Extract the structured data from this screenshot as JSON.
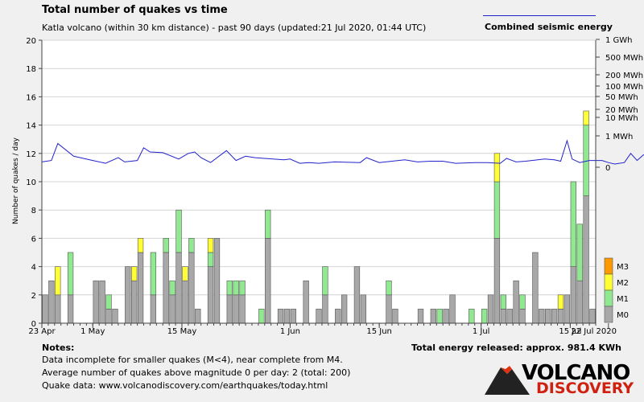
{
  "header": {
    "title": "Total number of quakes vs time",
    "subtitle": "Katla volcano (within 30 km distance) - past 90 days (updated:21 Jul 2020, 01:44 UTC)",
    "legend_energy": "Combined seismic energy"
  },
  "notes": {
    "title": "Notes:",
    "line1": "Data incomplete for smaller quakes (M<4), near complete from M4.",
    "line2": "Average number of quakes above magnitude 0 per day: 2 (total: 200)",
    "line3": "Quake data: www.volcanodiscovery.com/earthquakes/today.html"
  },
  "total_energy": "Total energy released: approx. 981.4 KWh",
  "logo": {
    "top": "VOLCANO",
    "bottom": "DISCOVERY"
  },
  "colors": {
    "M0": "#a8a8a8",
    "M1": "#90e890",
    "M2": "#ffff33",
    "M3": "#ff9900",
    "energy": "#2222cc"
  },
  "chart_data": {
    "type": "bar",
    "stacked": true,
    "ylabel": "Number of quakes / day",
    "ylim": [
      0,
      20
    ],
    "y_ticks": [
      0,
      2,
      4,
      6,
      8,
      10,
      12,
      14,
      16,
      18,
      20
    ],
    "x_tick_labels": [
      "23 Apr",
      "1 May",
      "15 May",
      "1 Jun",
      "15 Jun",
      "1 Jul",
      "15 Jul",
      "22 Jul 2020"
    ],
    "right_axis_labels": [
      "1 GWh",
      "500 MWh",
      "200 MWh",
      "100 MWh",
      "50 MWh",
      "20 MWh",
      "10 MWh",
      "1 MWh",
      "0"
    ],
    "magnitude_legend": [
      "M3",
      "M2",
      "M1",
      "M0"
    ],
    "grid": true,
    "days": [
      {
        "M0": 2,
        "M1": 0,
        "M2": 0
      },
      {
        "M0": 3,
        "M1": 0,
        "M2": 0
      },
      {
        "M0": 2,
        "M1": 0,
        "M2": 2
      },
      {
        "M0": 0,
        "M1": 0,
        "M2": 0
      },
      {
        "M0": 2,
        "M1": 3,
        "M2": 0
      },
      {
        "M0": 0,
        "M1": 0,
        "M2": 0
      },
      {
        "M0": 0,
        "M1": 0,
        "M2": 0
      },
      {
        "M0": 0,
        "M1": 0,
        "M2": 0
      },
      {
        "M0": 3,
        "M1": 0,
        "M2": 0
      },
      {
        "M0": 3,
        "M1": 0,
        "M2": 0
      },
      {
        "M0": 1,
        "M1": 1,
        "M2": 0
      },
      {
        "M0": 1,
        "M1": 0,
        "M2": 0
      },
      {
        "M0": 0,
        "M1": 0,
        "M2": 0
      },
      {
        "M0": 4,
        "M1": 0,
        "M2": 0
      },
      {
        "M0": 3,
        "M1": 0,
        "M2": 1
      },
      {
        "M0": 5,
        "M1": 0,
        "M2": 1
      },
      {
        "M0": 0,
        "M1": 0,
        "M2": 0
      },
      {
        "M0": 2,
        "M1": 3,
        "M2": 0
      },
      {
        "M0": 0,
        "M1": 0,
        "M2": 0
      },
      {
        "M0": 5,
        "M1": 1,
        "M2": 0
      },
      {
        "M0": 2,
        "M1": 1,
        "M2": 0
      },
      {
        "M0": 5,
        "M1": 3,
        "M2": 0
      },
      {
        "M0": 3,
        "M1": 0,
        "M2": 1
      },
      {
        "M0": 5,
        "M1": 1,
        "M2": 0
      },
      {
        "M0": 1,
        "M1": 0,
        "M2": 0
      },
      {
        "M0": 0,
        "M1": 0,
        "M2": 0
      },
      {
        "M0": 4,
        "M1": 1,
        "M2": 1
      },
      {
        "M0": 6,
        "M1": 0,
        "M2": 0
      },
      {
        "M0": 0,
        "M1": 0,
        "M2": 0
      },
      {
        "M0": 2,
        "M1": 1,
        "M2": 0
      },
      {
        "M0": 2,
        "M1": 1,
        "M2": 0
      },
      {
        "M0": 2,
        "M1": 1,
        "M2": 0
      },
      {
        "M0": 0,
        "M1": 0,
        "M2": 0
      },
      {
        "M0": 0,
        "M1": 0,
        "M2": 0
      },
      {
        "M0": 0,
        "M1": 1,
        "M2": 0
      },
      {
        "M0": 6,
        "M1": 2,
        "M2": 0
      },
      {
        "M0": 0,
        "M1": 0,
        "M2": 0
      },
      {
        "M0": 1,
        "M1": 0,
        "M2": 0
      },
      {
        "M0": 1,
        "M1": 0,
        "M2": 0
      },
      {
        "M0": 1,
        "M1": 0,
        "M2": 0
      },
      {
        "M0": 0,
        "M1": 0,
        "M2": 0
      },
      {
        "M0": 3,
        "M1": 0,
        "M2": 0
      },
      {
        "M0": 0,
        "M1": 0,
        "M2": 0
      },
      {
        "M0": 1,
        "M1": 0,
        "M2": 0
      },
      {
        "M0": 2,
        "M1": 2,
        "M2": 0
      },
      {
        "M0": 0,
        "M1": 0,
        "M2": 0
      },
      {
        "M0": 1,
        "M1": 0,
        "M2": 0
      },
      {
        "M0": 2,
        "M1": 0,
        "M2": 0
      },
      {
        "M0": 0,
        "M1": 0,
        "M2": 0
      },
      {
        "M0": 4,
        "M1": 0,
        "M2": 0
      },
      {
        "M0": 2,
        "M1": 0,
        "M2": 0
      },
      {
        "M0": 0,
        "M1": 0,
        "M2": 0
      },
      {
        "M0": 0,
        "M1": 0,
        "M2": 0
      },
      {
        "M0": 0,
        "M1": 0,
        "M2": 0
      },
      {
        "M0": 2,
        "M1": 1,
        "M2": 0
      },
      {
        "M0": 1,
        "M1": 0,
        "M2": 0
      },
      {
        "M0": 0,
        "M1": 0,
        "M2": 0
      },
      {
        "M0": 0,
        "M1": 0,
        "M2": 0
      },
      {
        "M0": 0,
        "M1": 0,
        "M2": 0
      },
      {
        "M0": 1,
        "M1": 0,
        "M2": 0
      },
      {
        "M0": 0,
        "M1": 0,
        "M2": 0
      },
      {
        "M0": 1,
        "M1": 0,
        "M2": 0
      },
      {
        "M0": 0,
        "M1": 1,
        "M2": 0
      },
      {
        "M0": 1,
        "M1": 0,
        "M2": 0
      },
      {
        "M0": 2,
        "M1": 0,
        "M2": 0
      },
      {
        "M0": 0,
        "M1": 0,
        "M2": 0
      },
      {
        "M0": 0,
        "M1": 0,
        "M2": 0
      },
      {
        "M0": 0,
        "M1": 1,
        "M2": 0
      },
      {
        "M0": 0,
        "M1": 0,
        "M2": 0
      },
      {
        "M0": 0,
        "M1": 1,
        "M2": 0
      },
      {
        "M0": 2,
        "M1": 0,
        "M2": 0
      },
      {
        "M0": 6,
        "M1": 4,
        "M2": 2
      },
      {
        "M0": 1,
        "M1": 1,
        "M2": 0
      },
      {
        "M0": 1,
        "M1": 0,
        "M2": 0
      },
      {
        "M0": 3,
        "M1": 0,
        "M2": 0
      },
      {
        "M0": 1,
        "M1": 1,
        "M2": 0
      },
      {
        "M0": 0,
        "M1": 0,
        "M2": 0
      },
      {
        "M0": 5,
        "M1": 0,
        "M2": 0
      },
      {
        "M0": 1,
        "M1": 0,
        "M2": 0
      },
      {
        "M0": 1,
        "M1": 0,
        "M2": 0
      },
      {
        "M0": 1,
        "M1": 0,
        "M2": 0
      },
      {
        "M0": 1,
        "M1": 0,
        "M2": 1
      },
      {
        "M0": 2,
        "M1": 0,
        "M2": 0
      },
      {
        "M0": 4,
        "M1": 6,
        "M2": 0
      },
      {
        "M0": 3,
        "M1": 4,
        "M2": 0
      },
      {
        "M0": 9,
        "M1": 5,
        "M2": 1
      },
      {
        "M0": 1,
        "M1": 0,
        "M2": 0
      }
    ],
    "energy_line": {
      "name": "Combined seismic energy",
      "points": [
        [
          0,
          11.4
        ],
        [
          1.5,
          11.5
        ],
        [
          2.5,
          12.7
        ],
        [
          5,
          11.8
        ],
        [
          8,
          11.5
        ],
        [
          10,
          11.3
        ],
        [
          12,
          11.7
        ],
        [
          13,
          11.4
        ],
        [
          15,
          11.5
        ],
        [
          16,
          12.4
        ],
        [
          17,
          12.1
        ],
        [
          19,
          12.05
        ],
        [
          21.5,
          11.6
        ],
        [
          23,
          12.0
        ],
        [
          24,
          12.1
        ],
        [
          25,
          11.7
        ],
        [
          26.5,
          11.35
        ],
        [
          29,
          12.2
        ],
        [
          30.5,
          11.5
        ],
        [
          32,
          11.8
        ],
        [
          33.5,
          11.7
        ],
        [
          35,
          11.65
        ],
        [
          38,
          11.55
        ],
        [
          39,
          11.6
        ],
        [
          40.5,
          11.3
        ],
        [
          42,
          11.35
        ],
        [
          43.5,
          11.3
        ],
        [
          46,
          11.4
        ],
        [
          50,
          11.35
        ],
        [
          51,
          11.7
        ],
        [
          53,
          11.35
        ],
        [
          55,
          11.45
        ],
        [
          57,
          11.55
        ],
        [
          59,
          11.4
        ],
        [
          61,
          11.45
        ],
        [
          63,
          11.45
        ],
        [
          65,
          11.3
        ],
        [
          68,
          11.35
        ],
        [
          70,
          11.35
        ],
        [
          72,
          11.3
        ],
        [
          73,
          11.65
        ],
        [
          74.5,
          11.4
        ],
        [
          76,
          11.45
        ],
        [
          79,
          11.6
        ],
        [
          80.5,
          11.55
        ],
        [
          81.5,
          11.45
        ],
        [
          82.5,
          12.9
        ],
        [
          83.3,
          11.6
        ],
        [
          84.5,
          11.35
        ],
        [
          86,
          11.5
        ],
        [
          88,
          11.5
        ],
        [
          89,
          11.35
        ],
        [
          90,
          11.25
        ],
        [
          91.5,
          11.35
        ],
        [
          92.5,
          12.0
        ],
        [
          93.5,
          11.5
        ],
        [
          94.5,
          11.9
        ],
        [
          95.5,
          11.9
        ],
        [
          96.3,
          12.2
        ],
        [
          97,
          11.9
        ],
        [
          97.5,
          11.4
        ]
      ]
    }
  }
}
